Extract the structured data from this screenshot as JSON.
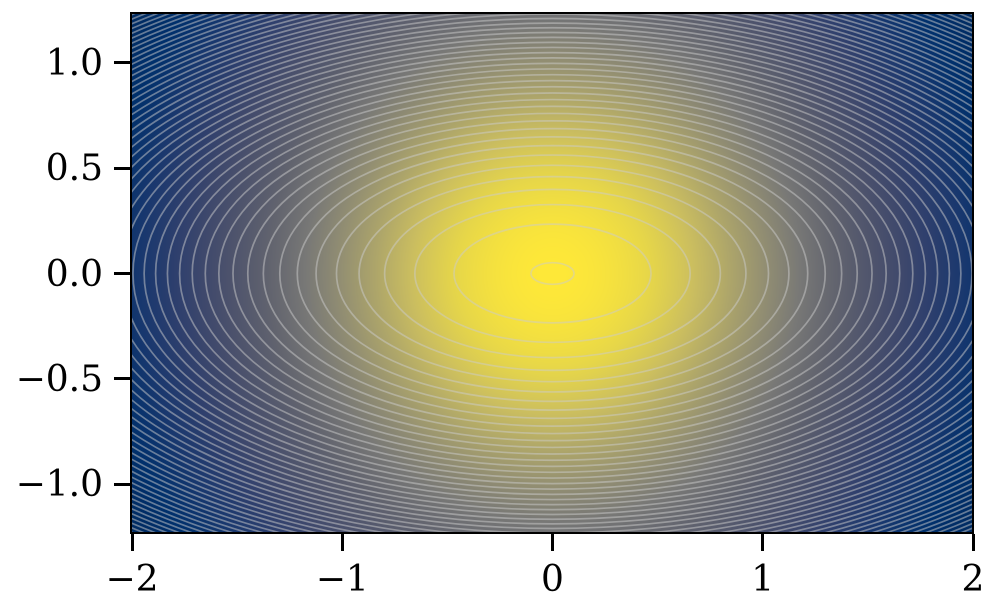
{
  "figure": {
    "background": "#ffffff"
  },
  "chart_data": {
    "type": "contour",
    "title": "",
    "xlabel": "",
    "ylabel": "",
    "x_range": [
      -2,
      2
    ],
    "y_range": [
      -1.232,
      1.232
    ],
    "grid": false,
    "legend": false,
    "x_ticks": {
      "values": [
        -2,
        -1,
        0,
        1,
        2
      ],
      "labels": [
        "−2",
        "−1",
        "0",
        "1",
        "2"
      ]
    },
    "y_ticks": {
      "values": [
        1.0,
        0.5,
        0.0,
        -0.5,
        -1.0
      ],
      "labels": [
        "1.0",
        "0.5",
        "0.0",
        "−0.5",
        "−1.0"
      ]
    },
    "fill": {
      "kind": "gaussian",
      "formula": "exp(-(x^2+y^2)/2)",
      "center": [
        0,
        0
      ],
      "peak_value": 1.0,
      "colormap": "cividis",
      "colormap_stops": [
        {
          "t": 0.0,
          "rgb": [
            0,
            34,
            78
          ]
        },
        {
          "t": 0.1,
          "rgb": [
            0,
            48,
            108
          ]
        },
        {
          "t": 0.15,
          "rgb": [
            26,
            56,
            110
          ]
        },
        {
          "t": 0.2,
          "rgb": [
            46,
            63,
            109
          ]
        },
        {
          "t": 0.25,
          "rgb": [
            62,
            72,
            108
          ]
        },
        {
          "t": 0.3,
          "rgb": [
            75,
            81,
            108
          ]
        },
        {
          "t": 0.4,
          "rgb": [
            97,
            99,
            110
          ]
        },
        {
          "t": 0.5,
          "rgb": [
            120,
            120,
            118
          ]
        },
        {
          "t": 0.6,
          "rgb": [
            146,
            142,
            114
          ]
        },
        {
          "t": 0.7,
          "rgb": [
            173,
            165,
            106
          ]
        },
        {
          "t": 0.8,
          "rgb": [
            203,
            190,
            95
          ]
        },
        {
          "t": 0.9,
          "rgb": [
            230,
            214,
            73
          ]
        },
        {
          "t": 1.0,
          "rgb": [
            254,
            232,
            56
          ]
        }
      ]
    },
    "contour_lines": {
      "formula": "x^2 + 4*y^2 = c",
      "ellipse_axis_ratio": 2,
      "level_start": 0.0105,
      "level_step": 0.209,
      "level_count": 51,
      "line_color": "rgba(203,203,203,0.5)",
      "line_width": 1.7
    },
    "axes_style": {
      "spine_color": "#000000",
      "tick_color": "#000000",
      "label_color": "#000000"
    }
  }
}
